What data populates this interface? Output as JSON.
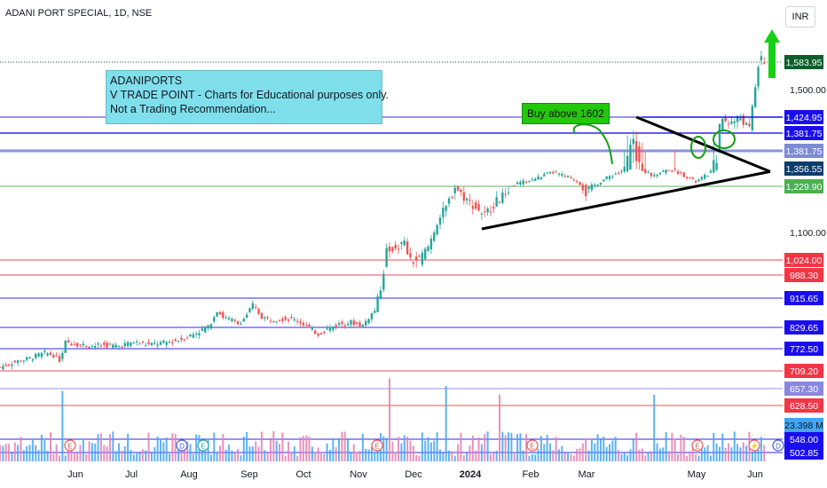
{
  "header": {
    "title": "ADANI PORT SPECIAL, 1D, NSE",
    "currency_button": "INR"
  },
  "annotations": {
    "note_lines": [
      "ADANIPORTS",
      "V TRADE POINT - Charts for Educational purposes only.",
      "Not a Trading Recommendation..."
    ],
    "buy_label": "Buy above 1602"
  },
  "colors": {
    "up": "#26a69a",
    "down": "#ef5350",
    "blue_line": "#1a0df0",
    "red_line": "#f23645",
    "green_line": "#4caf50",
    "volume": "#42a5f5"
  },
  "chart_data": {
    "type": "candlestick",
    "symbol": "ADANI PORT SPECIAL",
    "interval": "1D",
    "exchange": "NSE",
    "last_price": 1583.95,
    "y_ticks": [
      1500.0,
      1100.0
    ],
    "x_ticks": [
      "Jun",
      "Jul",
      "Aug",
      "Sep",
      "Oct",
      "Nov",
      "Dec",
      "2024",
      "Feb",
      "Mar",
      "May",
      "Jun"
    ],
    "horizontal_levels": [
      {
        "value": 1424.95,
        "label": "1,424.95",
        "color": "#1a0df0"
      },
      {
        "value": 1381.75,
        "label": "1,381.75",
        "color": "#1a0df0"
      },
      {
        "value": 1381.75,
        "label": "1,381.75",
        "color": "#7d8ad6"
      },
      {
        "value": 1229.9,
        "label": "1,229.90",
        "color": "#4caf50"
      },
      {
        "value": 1024.0,
        "label": "1,024.00",
        "color": "#f23645"
      },
      {
        "value": 988.3,
        "label": "988.30",
        "color": "#f23645"
      },
      {
        "value": 915.65,
        "label": "915.65",
        "color": "#1a0df0"
      },
      {
        "value": 829.65,
        "label": "829.65",
        "color": "#1a0df0"
      },
      {
        "value": 772.5,
        "label": "772.50",
        "color": "#1a0df0"
      },
      {
        "value": 709.2,
        "label": "709.20",
        "color": "#f23645"
      },
      {
        "value": 657.3,
        "label": "657.30",
        "color": "#8a87e0"
      },
      {
        "value": 628.5,
        "label": "628.50",
        "color": "#f23645"
      },
      {
        "value": 548.0,
        "label": "548.00",
        "color": "#1a0df0"
      },
      {
        "value": 502.85,
        "label": "502.85",
        "color": "#1a0df0"
      }
    ],
    "price_labels": [
      {
        "value": 1583.95,
        "label": "1,583.95",
        "bg": "#0c5e2a"
      },
      {
        "value": 1356.55,
        "label": "1,356.55",
        "bg": "#0b3d6b"
      }
    ],
    "volume_label": "23.398 M",
    "close_series": [
      [
        0,
        720
      ],
      [
        5,
        735
      ],
      [
        10,
        745
      ],
      [
        15,
        760
      ],
      [
        18,
        755
      ],
      [
        20,
        740
      ],
      [
        22,
        790
      ],
      [
        26,
        785
      ],
      [
        30,
        780
      ],
      [
        35,
        782
      ],
      [
        40,
        780
      ],
      [
        45,
        790
      ],
      [
        50,
        783
      ],
      [
        55,
        788
      ],
      [
        60,
        795
      ],
      [
        65,
        812
      ],
      [
        70,
        830
      ],
      [
        73,
        880
      ],
      [
        75,
        860
      ],
      [
        78,
        850
      ],
      [
        80,
        840
      ],
      [
        82,
        855
      ],
      [
        85,
        895
      ],
      [
        88,
        860
      ],
      [
        92,
        853
      ],
      [
        96,
        855
      ],
      [
        100,
        850
      ],
      [
        103,
        835
      ],
      [
        107,
        812
      ],
      [
        110,
        825
      ],
      [
        114,
        840
      ],
      [
        118,
        845
      ],
      [
        122,
        835
      ],
      [
        124,
        860
      ],
      [
        126,
        880
      ],
      [
        128,
        950
      ],
      [
        130,
        1050
      ],
      [
        133,
        1060
      ],
      [
        136,
        1070
      ],
      [
        138,
        1020
      ],
      [
        141,
        1025
      ],
      [
        144,
        1060
      ],
      [
        147,
        1130
      ],
      [
        150,
        1170
      ],
      [
        153,
        1230
      ],
      [
        156,
        1200
      ],
      [
        160,
        1170
      ],
      [
        163,
        1150
      ],
      [
        166,
        1180
      ],
      [
        170,
        1210
      ],
      [
        174,
        1250
      ],
      [
        178,
        1270
      ],
      [
        182,
        1300
      ],
      [
        186,
        1330
      ],
      [
        190,
        1300
      ],
      [
        194,
        1270
      ],
      [
        197,
        1210
      ],
      [
        200,
        1240
      ],
      [
        204,
        1290
      ],
      [
        208,
        1330
      ],
      [
        212,
        1370
      ],
      [
        216,
        1350
      ],
      [
        219,
        1310
      ],
      [
        222,
        1330
      ],
      [
        225,
        1350
      ],
      [
        228,
        1330
      ],
      [
        231,
        1300
      ],
      [
        234,
        1260
      ],
      [
        237,
        1300
      ],
      [
        240,
        1350
      ],
      [
        243,
        1420
      ],
      [
        246,
        1410
      ],
      [
        249,
        1425
      ],
      [
        252,
        1390
      ],
      [
        255,
        1575
      ],
      [
        257,
        1583.95
      ]
    ],
    "trendlines": [
      {
        "from": [
          162,
          1110
        ],
        "to": [
          259,
          1335
        ],
        "desc": "rising support"
      },
      {
        "from": [
          214,
          1425
        ],
        "to": [
          259,
          1335
        ],
        "desc": "falling resistance"
      }
    ]
  }
}
